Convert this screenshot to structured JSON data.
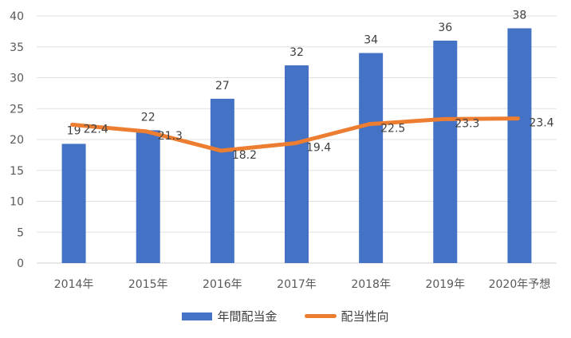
{
  "chart_data": {
    "type": "bar",
    "categories": [
      "2014年",
      "2015年",
      "2016年",
      "2017年",
      "2018年",
      "2019年",
      "2020年予想"
    ],
    "series": [
      {
        "name": "年間配当金",
        "type": "bar",
        "color": "#4472C4",
        "values": [
          19.3,
          21.5,
          26.6,
          32.0,
          34.0,
          36.0,
          38.0
        ],
        "labels": [
          "19",
          "22",
          "27",
          "32",
          "34",
          "36",
          "38"
        ]
      },
      {
        "name": "配当性向",
        "type": "line",
        "color": "#ED7D31",
        "values": [
          22.4,
          21.3,
          18.2,
          19.4,
          22.5,
          23.3,
          23.4
        ],
        "labels": [
          "22.4",
          "21.3",
          "18.2",
          "19.4",
          "22.5",
          "23.3",
          "23.4"
        ]
      }
    ],
    "ylim": [
      0,
      40
    ],
    "yticks": [
      0,
      5,
      10,
      15,
      20,
      25,
      30,
      35,
      40
    ],
    "title": "",
    "xlabel": "",
    "ylabel": "",
    "grid": true,
    "legend": "bottom"
  }
}
